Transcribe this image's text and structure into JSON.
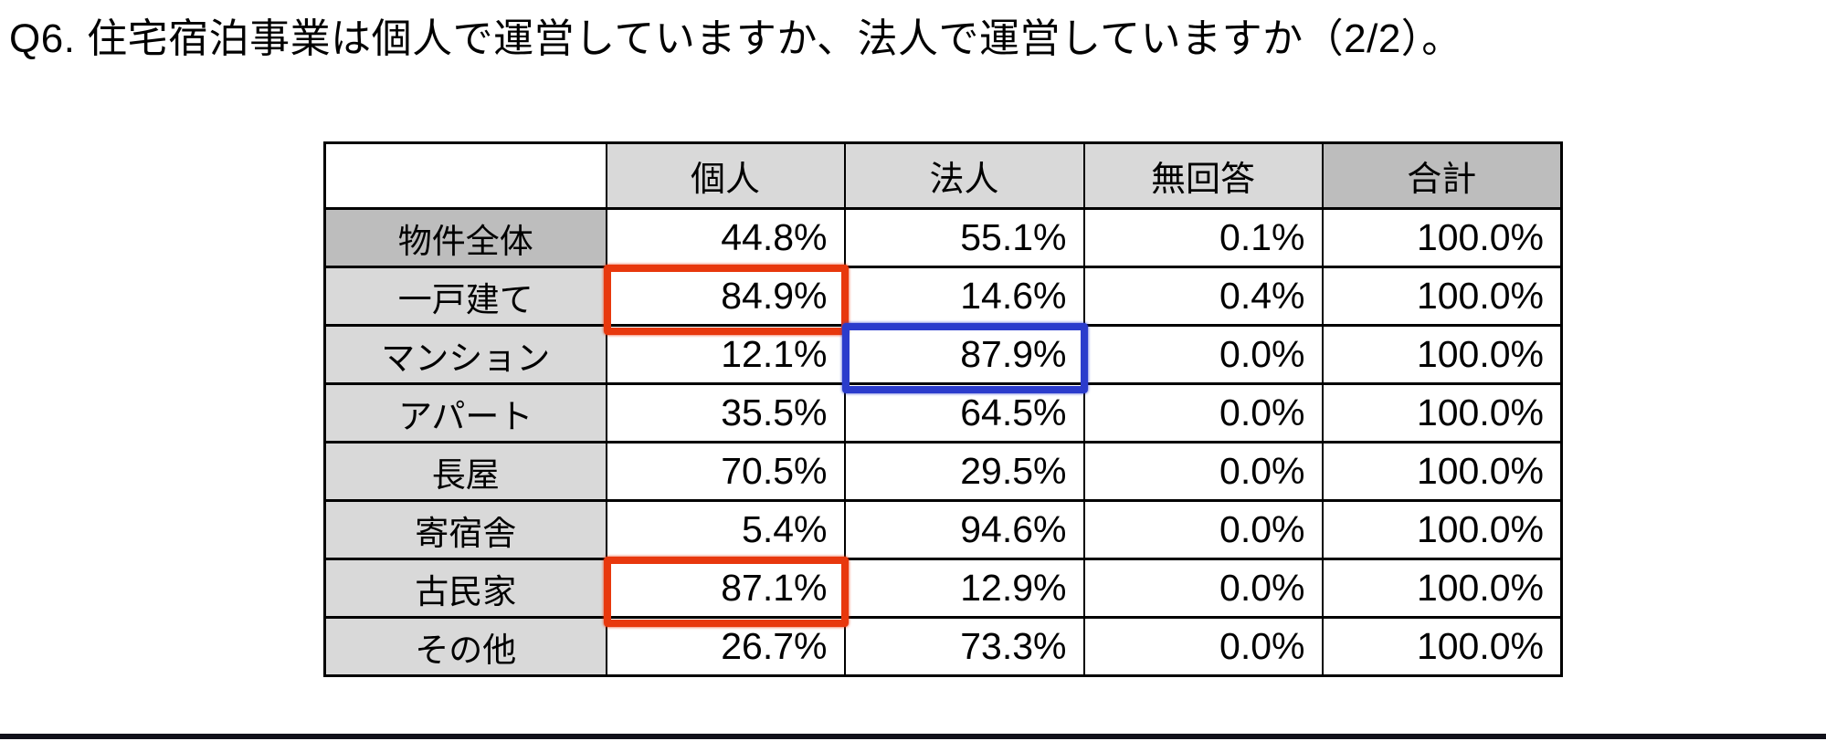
{
  "page": {
    "title": "Q6. 住宅宿泊事業は個人で運営していますか、法人で運営していますか（2/2）。"
  },
  "table": {
    "column_headers": [
      "",
      "個人",
      "法人",
      "無回答",
      "合計"
    ],
    "column_header_shades": [
      "white",
      "light",
      "light",
      "light",
      "dark"
    ],
    "rows": [
      {
        "label": "物件全体",
        "shade": "dark",
        "values": [
          "44.8%",
          "55.1%",
          "0.1%",
          "100.0%"
        ]
      },
      {
        "label": "一戸建て",
        "shade": "light",
        "values": [
          "84.9%",
          "14.6%",
          "0.4%",
          "100.0%"
        ]
      },
      {
        "label": "マンション",
        "shade": "light",
        "values": [
          "12.1%",
          "87.9%",
          "0.0%",
          "100.0%"
        ]
      },
      {
        "label": "アパート",
        "shade": "light",
        "values": [
          "35.5%",
          "64.5%",
          "0.0%",
          "100.0%"
        ]
      },
      {
        "label": "長屋",
        "shade": "light",
        "values": [
          "70.5%",
          "29.5%",
          "0.0%",
          "100.0%"
        ]
      },
      {
        "label": "寄宿舎",
        "shade": "light",
        "values": [
          "5.4%",
          "94.6%",
          "0.0%",
          "100.0%"
        ]
      },
      {
        "label": "古民家",
        "shade": "light",
        "values": [
          "87.1%",
          "12.9%",
          "0.0%",
          "100.0%"
        ]
      },
      {
        "label": "その他",
        "shade": "light",
        "values": [
          "26.7%",
          "73.3%",
          "0.0%",
          "100.0%"
        ]
      }
    ],
    "highlights": [
      {
        "row": 1,
        "col": 0,
        "color": "red"
      },
      {
        "row": 2,
        "col": 1,
        "color": "blue"
      },
      {
        "row": 6,
        "col": 0,
        "color": "red"
      }
    ]
  },
  "colors": {
    "cell_light_gray": "#d9d9d9",
    "cell_dark_gray": "#bdbdbd",
    "highlight_red": "#e8380d",
    "highlight_blue": "#2b3ccc",
    "border": "#000000",
    "footer_bar": "#11111a"
  }
}
